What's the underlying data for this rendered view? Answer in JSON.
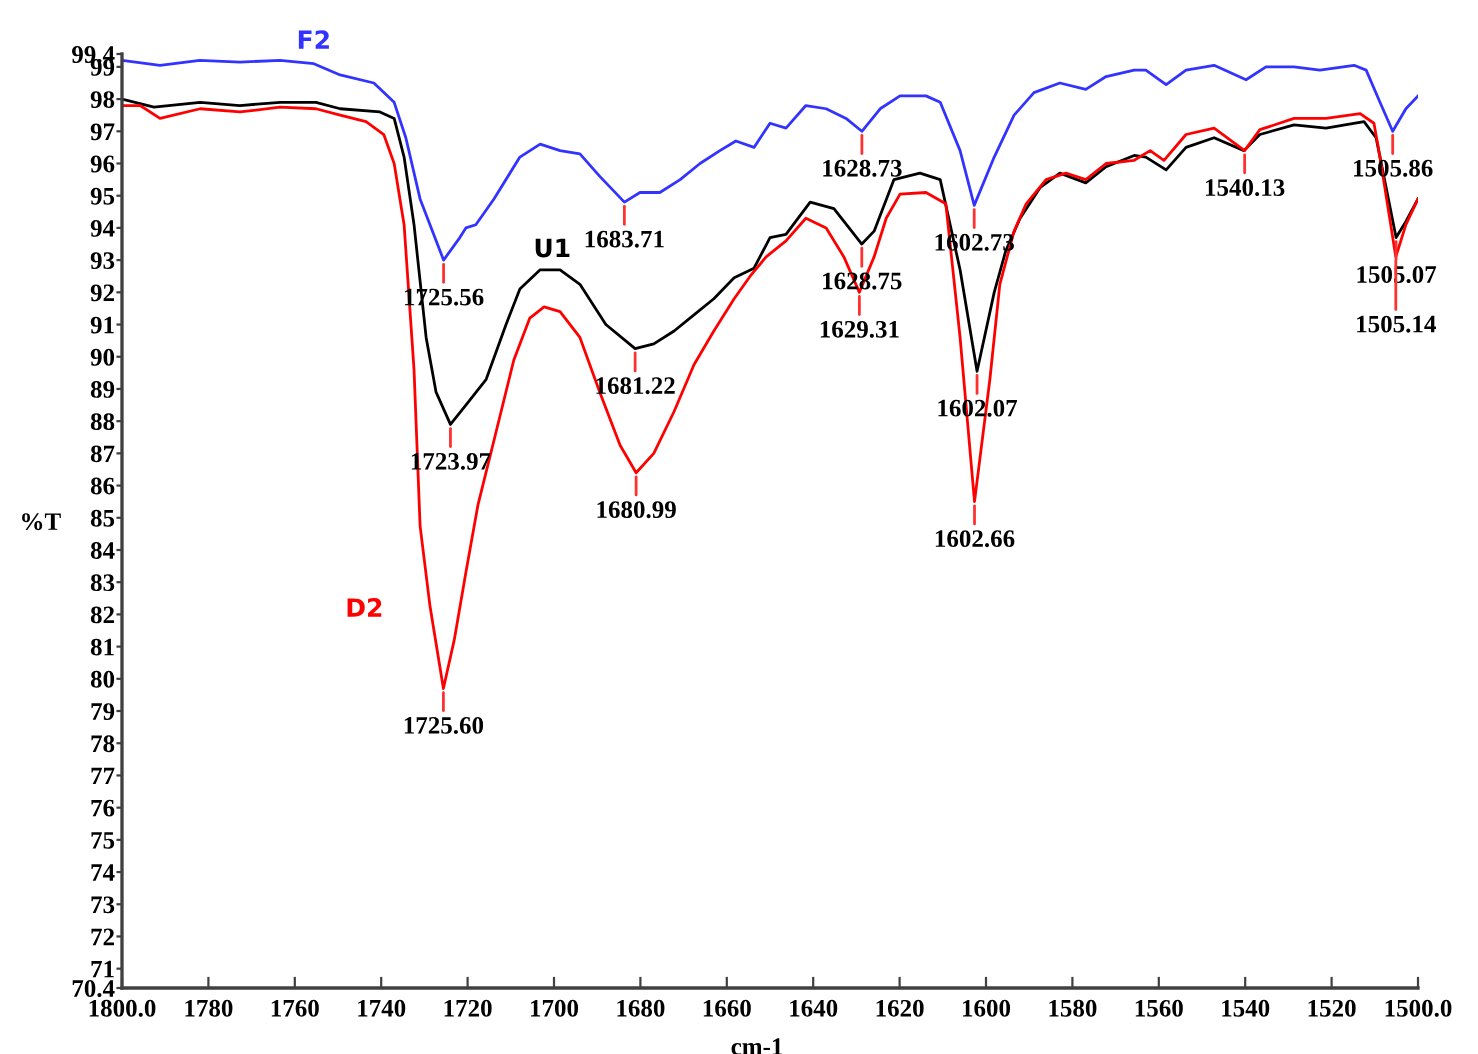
{
  "chart_data": {
    "type": "line",
    "xlabel": "cm-1",
    "ylabel": "%T",
    "xlim": [
      1800,
      1500
    ],
    "ylim": [
      70.4,
      99.4
    ],
    "xticks": [
      {
        "value": 1800,
        "label": "1800.0"
      },
      1780,
      1760,
      1740,
      1720,
      1700,
      1680,
      1660,
      1640,
      1620,
      1600,
      1580,
      1560,
      1540,
      1520,
      {
        "value": 1500,
        "label": "1500.0"
      }
    ],
    "yticks": [
      70.4,
      71,
      72,
      73,
      74,
      75,
      76,
      77,
      78,
      79,
      80,
      81,
      82,
      83,
      84,
      85,
      86,
      87,
      88,
      89,
      90,
      91,
      92,
      93,
      94,
      95,
      96,
      97,
      98,
      99,
      99.4
    ],
    "grid": false,
    "legend": false,
    "marker": "none",
    "line_style": "solid",
    "series": [
      {
        "name": "F2",
        "color": "#3333ff",
        "x": [
          1800,
          1791.2,
          1782,
          1772.7,
          1763.4,
          1755.6,
          1749.5,
          1741.7,
          1737.0,
          1734.3,
          1731.0,
          1725.56,
          1721.8,
          1720.4,
          1718.1,
          1713.9,
          1707.9,
          1703.2,
          1698.6,
          1694.0,
          1689.4,
          1683.71,
          1680.1,
          1675.5,
          1670.8,
          1666.2,
          1661.6,
          1657.9,
          1653.7,
          1650.0,
          1646.3,
          1641.7,
          1637.0,
          1632.4,
          1628.73,
          1624.5,
          1619.9,
          1613.9,
          1610.6,
          1606.0,
          1602.73,
          1598.1,
          1593.5,
          1588.9,
          1582.9,
          1576.9,
          1572.2,
          1565.7,
          1563.0,
          1558.3,
          1553.7,
          1547.2,
          1539.8,
          1535.2,
          1528.7,
          1522.7,
          1514.8,
          1512.0,
          1508.8,
          1505.86,
          1502.8,
          1500
        ],
        "values": [
          99.2,
          99.05,
          99.2,
          99.15,
          99.2,
          99.1,
          98.75,
          98.5,
          97.9,
          96.8,
          94.9,
          93.0,
          93.7,
          94.0,
          94.1,
          94.9,
          96.2,
          96.6,
          96.4,
          96.3,
          95.6,
          94.8,
          95.1,
          95.1,
          95.5,
          96.0,
          96.4,
          96.7,
          96.5,
          97.25,
          97.1,
          97.8,
          97.7,
          97.4,
          97.0,
          97.7,
          98.1,
          98.1,
          97.9,
          96.4,
          94.7,
          96.2,
          97.5,
          98.2,
          98.5,
          98.3,
          98.7,
          98.9,
          98.9,
          98.45,
          98.9,
          99.05,
          98.6,
          99.0,
          99.0,
          98.9,
          99.05,
          98.9,
          97.9,
          97.0,
          97.7,
          98.1
        ]
      },
      {
        "name": "U1",
        "color": "#000000",
        "x": [
          1800,
          1792.6,
          1781.9,
          1772.7,
          1763.4,
          1755.1,
          1749.5,
          1740.3,
          1737.0,
          1734.7,
          1732.4,
          1729.6,
          1727.3,
          1723.97,
          1720.4,
          1715.7,
          1711.1,
          1707.9,
          1703.2,
          1698.6,
          1694.0,
          1688.0,
          1681.22,
          1676.9,
          1672.2,
          1667.6,
          1663.0,
          1658.3,
          1653.7,
          1650.0,
          1646.3,
          1640.7,
          1635.2,
          1628.75,
          1625.9,
          1621.3,
          1615.3,
          1610.6,
          1606.0,
          1602.07,
          1598.1,
          1595.4,
          1592.1,
          1587.5,
          1582.9,
          1576.9,
          1572.2,
          1565.7,
          1563.0,
          1558.3,
          1553.7,
          1547.2,
          1540.3,
          1536.6,
          1528.7,
          1521.3,
          1512.5,
          1509.7,
          1507.9,
          1505.07,
          1502.8,
          1500
        ],
        "values": [
          98.0,
          97.75,
          97.9,
          97.8,
          97.9,
          97.9,
          97.7,
          97.6,
          97.4,
          96.2,
          94.1,
          90.6,
          88.9,
          87.9,
          88.5,
          89.3,
          91.0,
          92.1,
          92.7,
          92.7,
          92.25,
          91.0,
          90.25,
          90.4,
          90.8,
          91.3,
          91.8,
          92.45,
          92.75,
          93.7,
          93.8,
          94.8,
          94.6,
          93.5,
          93.9,
          95.5,
          95.7,
          95.5,
          92.7,
          89.55,
          92.0,
          93.3,
          94.3,
          95.25,
          95.7,
          95.4,
          95.9,
          96.25,
          96.2,
          95.8,
          96.5,
          96.8,
          96.4,
          96.9,
          97.2,
          97.1,
          97.3,
          96.8,
          95.6,
          93.7,
          94.2,
          94.9
        ]
      },
      {
        "name": "D2",
        "color": "#ff0000",
        "x": [
          1800,
          1795.8,
          1791.2,
          1781.9,
          1772.7,
          1763.4,
          1755.1,
          1749.5,
          1743.5,
          1739.4,
          1737.0,
          1734.7,
          1732.4,
          1731.0,
          1728.7,
          1725.6,
          1723.1,
          1720.4,
          1717.6,
          1713.9,
          1709.3,
          1705.6,
          1702.3,
          1698.6,
          1694.0,
          1689.4,
          1684.7,
          1680.99,
          1676.9,
          1672.2,
          1667.6,
          1663.0,
          1658.3,
          1654.6,
          1650.9,
          1646.3,
          1641.7,
          1637.0,
          1632.9,
          1629.31,
          1625.9,
          1623.1,
          1619.9,
          1613.9,
          1609.3,
          1606.0,
          1602.66,
          1599.1,
          1596.8,
          1593.5,
          1590.7,
          1586.1,
          1581.5,
          1576.9,
          1572.2,
          1565.7,
          1562.0,
          1558.8,
          1553.7,
          1547.2,
          1540.13,
          1536.6,
          1528.7,
          1521.3,
          1513.4,
          1510.2,
          1508.8,
          1505.14,
          1502.8,
          1500
        ],
        "values": [
          97.8,
          97.8,
          97.4,
          97.7,
          97.6,
          97.75,
          97.7,
          97.5,
          97.3,
          96.9,
          96.0,
          94.1,
          89.6,
          84.75,
          82.25,
          79.7,
          81.2,
          83.3,
          85.4,
          87.4,
          89.9,
          91.2,
          91.55,
          91.4,
          90.6,
          88.9,
          87.25,
          86.4,
          87.0,
          88.3,
          89.75,
          90.8,
          91.8,
          92.5,
          93.1,
          93.6,
          94.3,
          94.0,
          93.1,
          92.0,
          93.1,
          94.3,
          95.05,
          95.1,
          94.75,
          90.6,
          85.5,
          89.3,
          92.25,
          93.9,
          94.75,
          95.5,
          95.7,
          95.5,
          96.0,
          96.1,
          96.4,
          96.1,
          96.9,
          97.1,
          96.4,
          97.05,
          97.4,
          97.4,
          97.55,
          97.25,
          96.2,
          93.1,
          94.1,
          94.9
        ]
      }
    ],
    "annotations": [
      {
        "text": "1725.56",
        "x": 1725.56,
        "y": 93.0
      },
      {
        "text": "1723.97",
        "x": 1723.97,
        "y": 87.9
      },
      {
        "text": "1725.60",
        "x": 1725.6,
        "y": 79.7
      },
      {
        "text": "1683.71",
        "x": 1683.71,
        "y": 94.8
      },
      {
        "text": "1681.22",
        "x": 1681.22,
        "y": 90.25
      },
      {
        "text": "1680.99",
        "x": 1680.99,
        "y": 86.4
      },
      {
        "text": "1628.73",
        "x": 1628.73,
        "y": 97.0
      },
      {
        "text": "1628.75",
        "x": 1628.75,
        "y": 93.5
      },
      {
        "text": "1629.31",
        "x": 1629.31,
        "y": 92.0
      },
      {
        "text": "1602.73",
        "x": 1602.73,
        "y": 94.7
      },
      {
        "text": "1602.07",
        "x": 1602.07,
        "y": 89.55
      },
      {
        "text": "1602.66",
        "x": 1602.66,
        "y": 85.5
      },
      {
        "text": "1540.13",
        "x": 1540.13,
        "y": 96.4
      },
      {
        "text": "1505.86",
        "x": 1505.86,
        "y": 97.0
      },
      {
        "text": "1505.07",
        "x": 1505.07,
        "y": 93.7
      },
      {
        "text": "1505.14",
        "x": 1505.14,
        "y": 93.1
      }
    ]
  }
}
